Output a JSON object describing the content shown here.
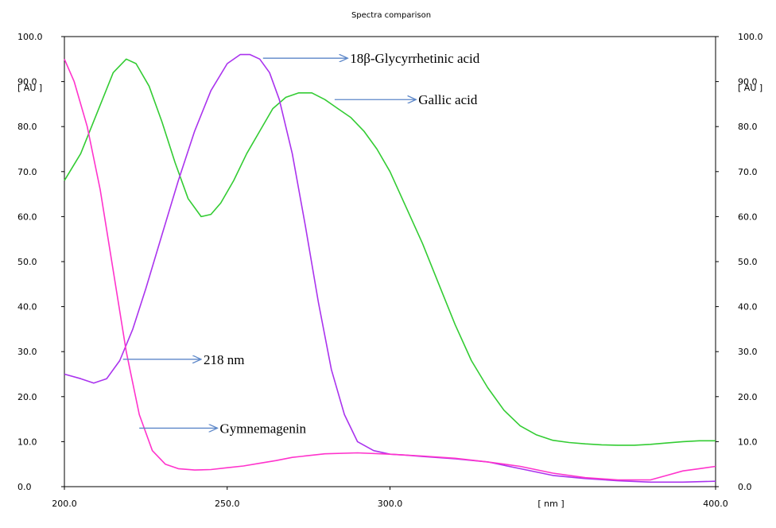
{
  "chart_data": {
    "type": "line",
    "title": "Spectra comparison",
    "xlabel": "[ nm ]",
    "ylabel": "[ AU ]",
    "xlim": [
      200,
      400
    ],
    "ylim": [
      0,
      100
    ],
    "x_ticks": [
      "200.0",
      "250.0",
      "300.0",
      "400.0"
    ],
    "x_tick_values": [
      200,
      250,
      300,
      400
    ],
    "y_ticks": [
      "0.0",
      "10.0",
      "20.0",
      "30.0",
      "40.0",
      "50.0",
      "60.0",
      "70.0",
      "80.0",
      "90.0",
      "100.0"
    ],
    "y_tick_values": [
      0,
      10,
      20,
      30,
      40,
      50,
      60,
      70,
      80,
      90,
      100
    ],
    "grid": false,
    "series": [
      {
        "color": "#33cc33",
        "x": [
          200,
          205,
          210,
          215,
          219,
          222,
          226,
          230,
          234,
          238,
          242,
          245,
          248,
          252,
          256,
          260,
          264,
          268,
          272,
          276,
          280,
          284,
          288,
          292,
          296,
          300,
          305,
          310,
          315,
          320,
          325,
          330,
          335,
          340,
          345,
          350,
          355,
          360,
          365,
          370,
          375,
          380,
          385,
          390,
          395,
          400
        ],
        "y": [
          68,
          74,
          83,
          92,
          95,
          94,
          89,
          81,
          72,
          64,
          60,
          60.5,
          63,
          68,
          74,
          79,
          84,
          86.5,
          87.5,
          87.5,
          86,
          84,
          82,
          79,
          75,
          70,
          62,
          54,
          45,
          36,
          28,
          22,
          17,
          13.5,
          11.5,
          10.3,
          9.8,
          9.5,
          9.3,
          9.2,
          9.2,
          9.4,
          9.7,
          10,
          10.2,
          10.2
        ]
      },
      {
        "color": "#aa33ee",
        "x": [
          200,
          205,
          209,
          213,
          217,
          221,
          225,
          230,
          235,
          240,
          245,
          250,
          254,
          257,
          260,
          263,
          266,
          270,
          274,
          278,
          282,
          286,
          290,
          295,
          300,
          305,
          310,
          320,
          330,
          340,
          350,
          360,
          370,
          380,
          390,
          400
        ],
        "y": [
          25,
          24,
          23,
          24,
          28,
          35,
          44,
          56,
          68,
          79,
          88,
          94,
          96,
          96,
          95,
          92,
          86,
          74,
          58,
          41,
          26,
          16,
          10,
          8,
          7.2,
          7,
          6.7,
          6.2,
          5.5,
          4,
          2.5,
          1.8,
          1.3,
          1,
          1,
          1.2
        ]
      },
      {
        "color": "#ff33cc",
        "x": [
          200,
          203,
          207,
          211,
          215,
          219,
          223,
          227,
          231,
          235,
          240,
          245,
          250,
          255,
          260,
          265,
          270,
          280,
          290,
          300,
          310,
          320,
          330,
          340,
          350,
          360,
          370,
          380,
          385,
          390,
          395,
          400
        ],
        "y": [
          95,
          90,
          80,
          66,
          48,
          30,
          16,
          8,
          5,
          4,
          3.7,
          3.8,
          4.2,
          4.6,
          5.2,
          5.8,
          6.5,
          7.3,
          7.5,
          7.2,
          6.8,
          6.3,
          5.5,
          4.5,
          3,
          2,
          1.5,
          1.5,
          2.5,
          3.5,
          4,
          4.5
        ]
      }
    ],
    "annotations": [
      {
        "text": "18β-Glycyrrhetinic acid",
        "from": [
          261,
          95.2
        ],
        "to": [
          287,
          95.2
        ]
      },
      {
        "text": "Gallic acid",
        "from": [
          283,
          86
        ],
        "to": [
          308,
          86
        ]
      },
      {
        "text": "218 nm",
        "from": [
          218,
          28.3
        ],
        "to": [
          242,
          28.3
        ]
      },
      {
        "text": "Gymnemagenin",
        "from": [
          223,
          13
        ],
        "to": [
          247,
          13
        ]
      }
    ]
  }
}
